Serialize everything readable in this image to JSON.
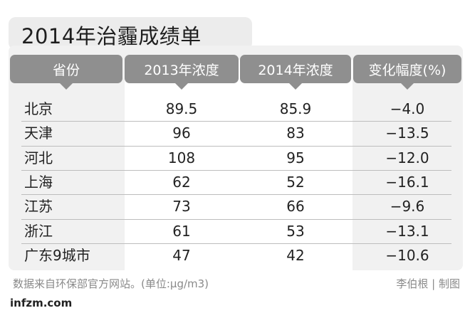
{
  "chart_data": {
    "type": "table",
    "title": "2014年治霾成绩单",
    "columns": [
      "省份",
      "2013年浓度",
      "2014年浓度",
      "变化幅度(%)"
    ],
    "rows": [
      {
        "province": "北京",
        "y2013": "89.5",
        "y2014": "85.9",
        "change": "−4.0"
      },
      {
        "province": "天津",
        "y2013": "96",
        "y2014": "83",
        "change": "−13.5"
      },
      {
        "province": "河北",
        "y2013": "108",
        "y2014": "95",
        "change": "−12.0"
      },
      {
        "province": "上海",
        "y2013": "62",
        "y2014": "52",
        "change": "−16.1"
      },
      {
        "province": "江苏",
        "y2013": "73",
        "y2014": "66",
        "change": "−9.6"
      },
      {
        "province": "浙江",
        "y2013": "61",
        "y2014": "53",
        "change": "−13.1"
      },
      {
        "province": "广东9城市",
        "y2013": "47",
        "y2014": "42",
        "change": "−10.6"
      }
    ]
  },
  "footer": {
    "source": "数据来自环保部官方网站。(单位:μg/m3)",
    "credit": "李伯根 | 制图",
    "logo": "infzm.com"
  }
}
